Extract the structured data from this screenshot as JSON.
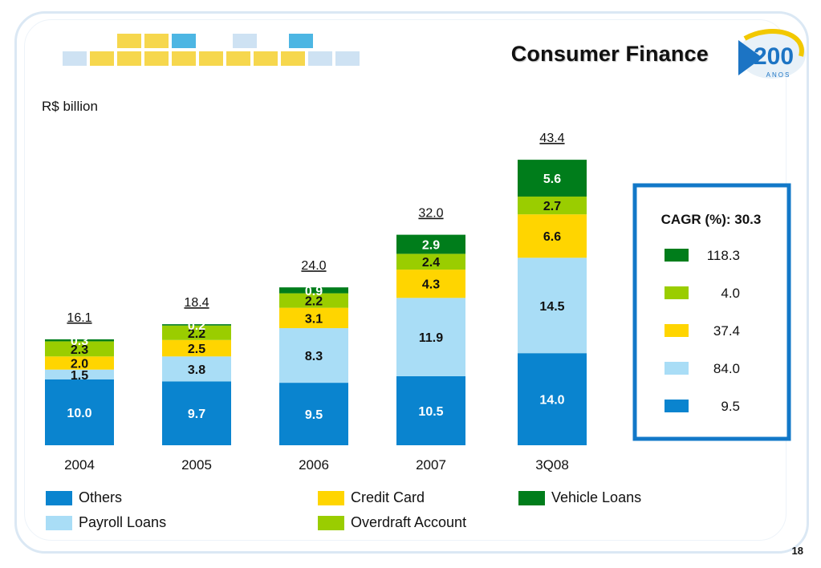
{
  "header": {
    "title": "Consumer Finance",
    "unit": "R$ billion",
    "page_number": "18"
  },
  "logo": {
    "text": "200",
    "subtext": "ANOS",
    "icon": "200-anos-logo-icon"
  },
  "colors": {
    "others": "#0a84cf",
    "payroll": "#a9ddf6",
    "credit": "#ffd500",
    "overdraft": "#9acd00",
    "vehicle": "#007d1b"
  },
  "chart_data": {
    "type": "bar",
    "stacked": true,
    "categories": [
      "2004",
      "2005",
      "2006",
      "2007",
      "3Q08"
    ],
    "totals": [
      "16.1",
      "18.4",
      "24.0",
      "32.0",
      "43.4"
    ],
    "series": [
      {
        "name": "Others",
        "key": "others",
        "values": [
          10.0,
          9.7,
          9.5,
          10.5,
          14.0
        ],
        "labels": [
          "10.0",
          "9.7",
          "9.5",
          "10.5",
          "14.0"
        ]
      },
      {
        "name": "Payroll Loans",
        "key": "payroll",
        "values": [
          1.5,
          3.8,
          8.3,
          11.9,
          14.5
        ],
        "labels": [
          "1.5",
          "3.8",
          "8.3",
          "11.9",
          "14.5"
        ]
      },
      {
        "name": "Credit Card",
        "key": "credit",
        "values": [
          2.0,
          2.5,
          3.1,
          4.3,
          6.6
        ],
        "labels": [
          "2.0",
          "2.5",
          "3.1",
          "4.3",
          "6.6"
        ]
      },
      {
        "name": "Overdraft Account",
        "key": "overdraft",
        "values": [
          2.3,
          2.2,
          2.2,
          2.4,
          2.7
        ],
        "labels": [
          "2.3",
          "2.2",
          "2.2",
          "2.4",
          "2.7"
        ]
      },
      {
        "name": "Vehicle Loans",
        "key": "vehicle",
        "values": [
          0.3,
          0.2,
          0.9,
          2.9,
          5.6
        ],
        "labels": [
          "0.3",
          "0.2",
          "0.9",
          "2.9",
          "5.6"
        ]
      }
    ],
    "cagr": {
      "title": "CAGR (%): 30.3",
      "items": [
        {
          "key": "vehicle",
          "value": "118.3"
        },
        {
          "key": "overdraft",
          "value": "4.0"
        },
        {
          "key": "credit",
          "value": "37.4"
        },
        {
          "key": "payroll",
          "value": "84.0"
        },
        {
          "key": "others",
          "value": "9.5"
        }
      ]
    },
    "legend": [
      "Others",
      "Credit Card",
      "Vehicle Loans",
      "Payroll Loans",
      "Overdraft Account"
    ],
    "ylim": [
      0,
      45
    ],
    "grid": false,
    "legend_placement": "bottom"
  }
}
